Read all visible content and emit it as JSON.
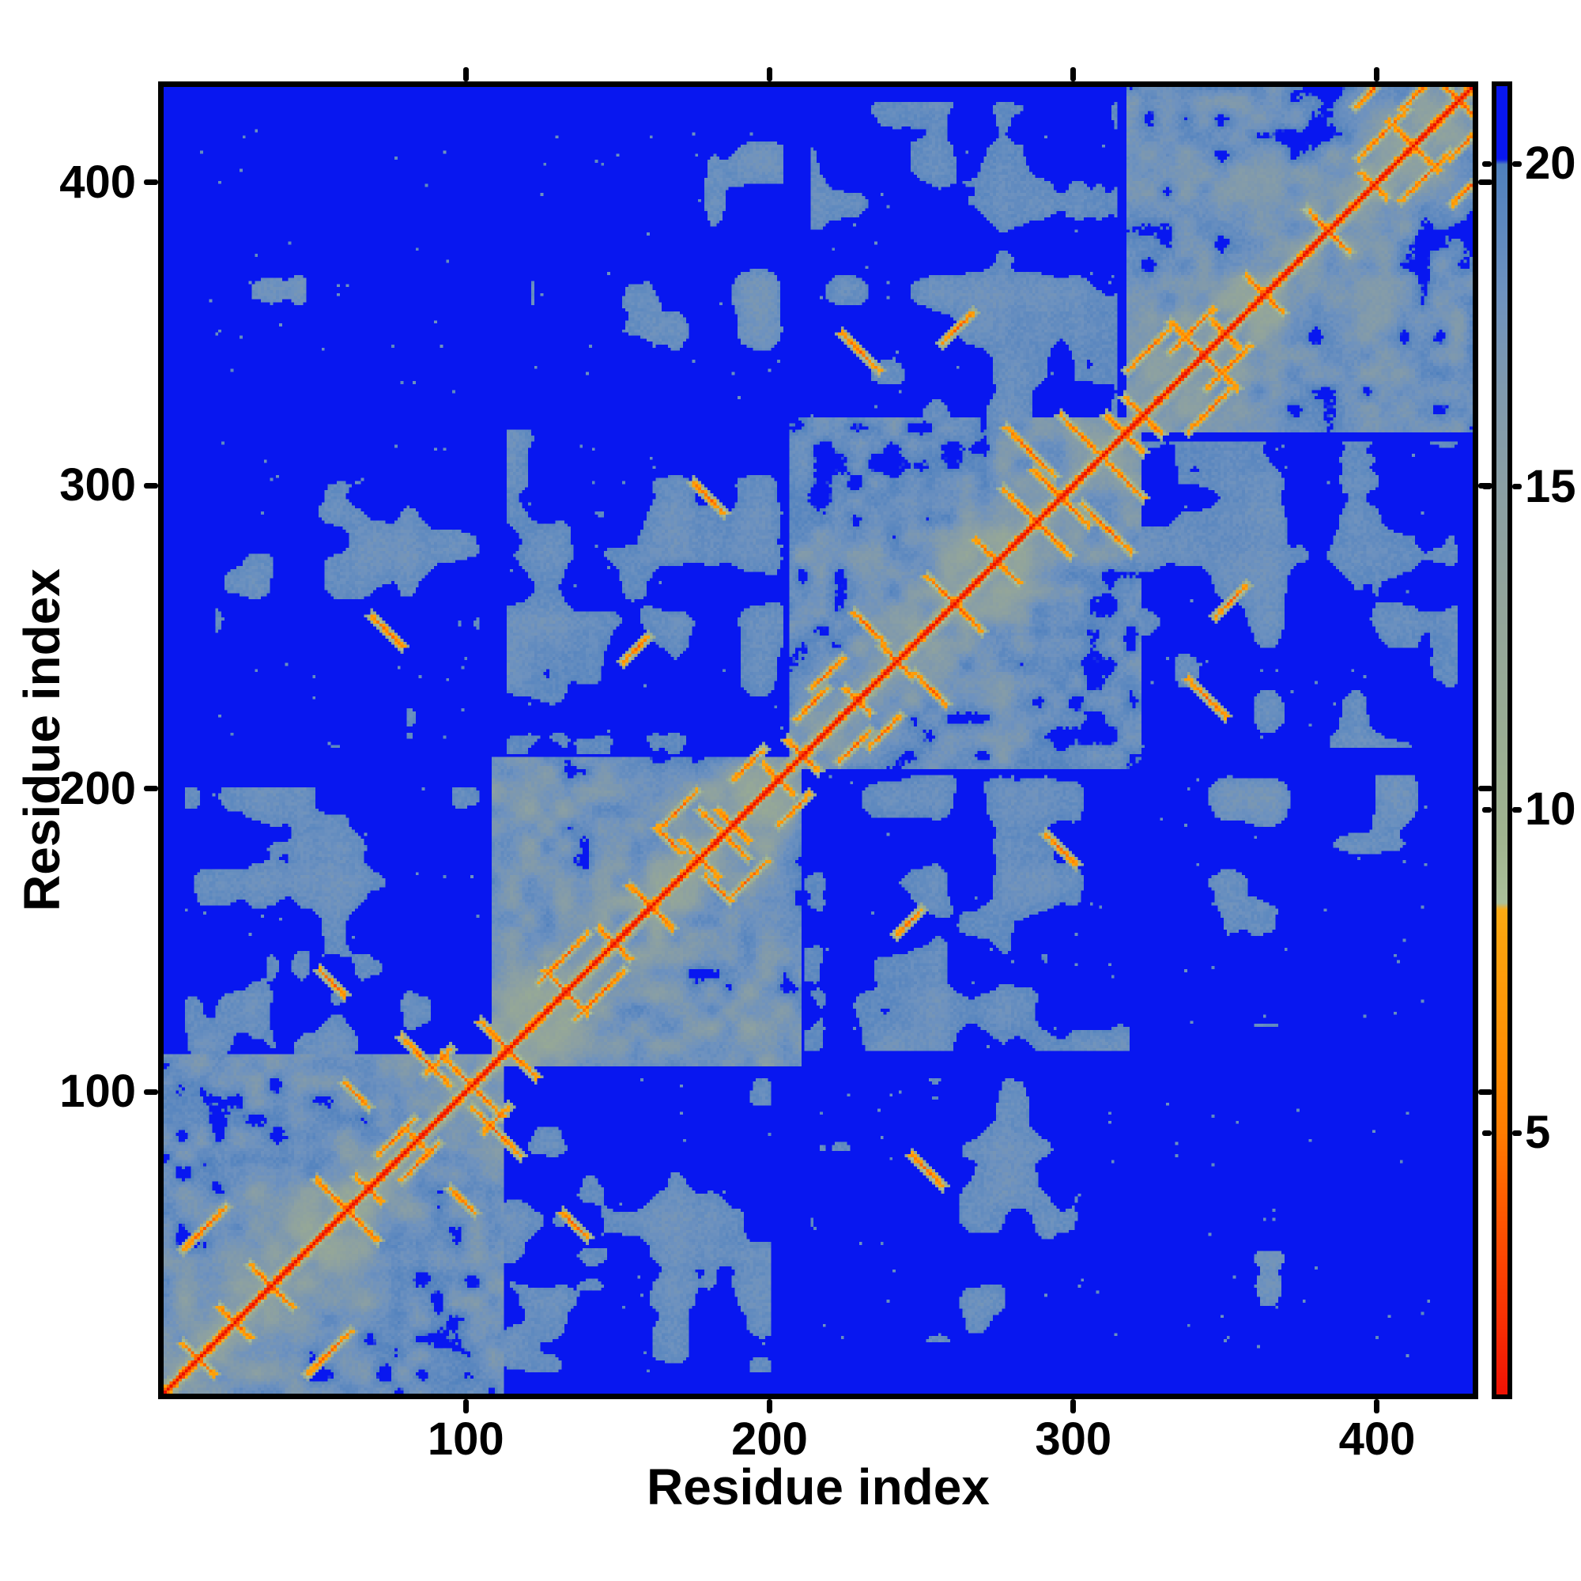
{
  "figure": {
    "background": "#ffffff",
    "frame_color": "#000000"
  },
  "chart_data": {
    "type": "heatmap",
    "title": "",
    "xlabel": "Residue index",
    "ylabel": "Residue index",
    "x_ticks": [
      100,
      200,
      300,
      400
    ],
    "y_ticks": [
      100,
      200,
      300,
      400
    ],
    "n_residues": 431,
    "axis_range": [
      1,
      431
    ],
    "grid": false,
    "colorbar": {
      "ticks": [
        5,
        10,
        15,
        20
      ],
      "vmin": 0.95,
      "vmax": 21.2,
      "position": "right"
    },
    "palette": {
      "far_blue": "#0817f0",
      "slate_blue": "#6e92bf",
      "gray_green": "#a1b590",
      "orange": "#fe9808",
      "red": "#e80d00"
    },
    "colormap_stops": [
      [
        0.0,
        "#e80d00"
      ],
      [
        1.0,
        "#f01404"
      ],
      [
        2.0,
        "#f82e03"
      ],
      [
        3.0,
        "#fc4502"
      ],
      [
        4.0,
        "#ff5f00"
      ],
      [
        5.0,
        "#ff7c00"
      ],
      [
        6.0,
        "#ff8c02"
      ],
      [
        7.0,
        "#fe9808"
      ],
      [
        8.0,
        "#fda30d"
      ],
      [
        8.45,
        "#fdaa12"
      ],
      [
        8.55,
        "#abc09a"
      ],
      [
        9.5,
        "#a1b590"
      ],
      [
        11.0,
        "#9aad92"
      ],
      [
        13.0,
        "#93a59a"
      ],
      [
        15.0,
        "#8a9fa4"
      ],
      [
        16.5,
        "#7f99ad"
      ],
      [
        18.0,
        "#6e92bf"
      ],
      [
        19.0,
        "#5e89bf"
      ],
      [
        20.0,
        "#4f80be"
      ],
      [
        20.08,
        "#0817f0"
      ],
      [
        24.0,
        "#0817f0"
      ]
    ],
    "far_value": 24,
    "matrix_model": {
      "description": "Symmetric residue-residue distance map: red main diagonal (0), orange secondary-structure contact streaks crossing the diagonal, slate-blue intra-domain contact mass with crisp deep-blue holes (>20), four structural domains along the diagonal with sparser inter-domain contact patches.",
      "seed": 20,
      "diagonal_value": 0,
      "domains": [
        [
          1,
          112
        ],
        [
          109,
          210
        ],
        [
          207,
          322
        ],
        [
          318,
          431
        ]
      ],
      "interfaces": [
        [
          8,
          104,
          112,
          200,
          0.42
        ],
        [
          114,
          204,
          212,
          318,
          0.55
        ],
        [
          214,
          314,
          322,
          426,
          0.48
        ],
        [
          18,
          104,
          214,
          314,
          0.36
        ],
        [
          122,
          204,
          326,
          420,
          0.3
        ],
        [
          12,
          100,
          330,
          420,
          0.03
        ]
      ],
      "hairpin_spacing": 15,
      "pair_spacing": 21,
      "long_range_streaks": [
        {
          "i": 74,
          "j": 252,
          "len": 5,
          "dir": "anti"
        },
        {
          "i": 230,
          "j": 344,
          "len": 6,
          "dir": "anti"
        },
        {
          "i": 156,
          "j": 246,
          "len": 4,
          "dir": "para"
        },
        {
          "i": 262,
          "j": 352,
          "len": 5,
          "dir": "para"
        },
        {
          "i": 56,
          "j": 136,
          "len": 4,
          "dir": "anti"
        },
        {
          "i": 180,
          "j": 296,
          "len": 5,
          "dir": "anti"
        }
      ]
    }
  }
}
